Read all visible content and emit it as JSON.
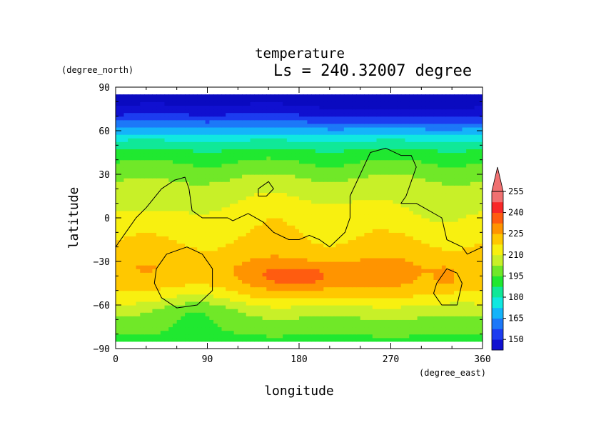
{
  "chart_data": {
    "type": "heatmap",
    "title": "temperature",
    "subtitle": "Ls = 240.32007 degree",
    "xlabel": "longitude",
    "ylabel": "latitude",
    "x_units": "(degree_east)",
    "y_units": "(degree_north)",
    "xlim": [
      0,
      360
    ],
    "ylim": [
      -90,
      90
    ],
    "data_lat_range": [
      -85,
      85
    ],
    "xticks": [
      0,
      90,
      180,
      270,
      360
    ],
    "yticks": [
      -90,
      -60,
      -30,
      0,
      30,
      60,
      90
    ],
    "xtick_labels": [
      "0",
      "90",
      "180",
      "270",
      "360"
    ],
    "ytick_labels": [
      "−90",
      "−60",
      "−30",
      "0",
      "30",
      "60",
      "90"
    ],
    "colorbar": {
      "levels": [
        150,
        165,
        180,
        195,
        210,
        225,
        240,
        255
      ],
      "labels": [
        "150",
        "165",
        "180",
        "195",
        "210",
        "225",
        "240",
        "255"
      ],
      "colors": [
        "#1010d0",
        "#1c3cf0",
        "#1c78f8",
        "#14b4fa",
        "#10e8e0",
        "#10e898",
        "#20e830",
        "#70e828",
        "#c8f028",
        "#f8f010",
        "#ffc800",
        "#ff9400",
        "#ff5c10",
        "#f82828",
        "#f07070"
      ],
      "extend": "max",
      "extend_color": "#f07070",
      "bottom_color": "#0a0ac0"
    },
    "zonal_profile": [
      {
        "lat": 85,
        "value": 146
      },
      {
        "lat": 75,
        "value": 152
      },
      {
        "lat": 65,
        "value": 168
      },
      {
        "lat": 55,
        "value": 185
      },
      {
        "lat": 45,
        "value": 198
      },
      {
        "lat": 35,
        "value": 205
      },
      {
        "lat": 25,
        "value": 212
      },
      {
        "lat": 15,
        "value": 216
      },
      {
        "lat": 5,
        "value": 220
      },
      {
        "lat": -5,
        "value": 222
      },
      {
        "lat": -15,
        "value": 225
      },
      {
        "lat": -25,
        "value": 228
      },
      {
        "lat": -35,
        "value": 231
      },
      {
        "lat": -45,
        "value": 228
      },
      {
        "lat": -55,
        "value": 222
      },
      {
        "lat": -65,
        "value": 212
      },
      {
        "lat": -75,
        "value": 206
      },
      {
        "lat": -85,
        "value": 200
      }
    ],
    "anomalies": [
      {
        "lon": 205,
        "lat": -42,
        "rlon": 82,
        "rlat": 14,
        "amp": 10
      },
      {
        "lon": 175,
        "lat": -40,
        "rlon": 30,
        "rlat": 6,
        "amp": 7
      },
      {
        "lon": 325,
        "lat": -42,
        "rlon": 14,
        "rlat": 10,
        "amp": 6
      },
      {
        "lon": 75,
        "lat": -63,
        "rlon": 45,
        "rlat": 14,
        "amp": -9
      },
      {
        "lon": 30,
        "lat": 12,
        "rlon": 40,
        "rlat": 18,
        "amp": -5
      },
      {
        "lon": 290,
        "lat": 5,
        "rlon": 40,
        "rlat": 15,
        "amp": -4
      },
      {
        "lon": 205,
        "lat": 0,
        "rlon": 60,
        "rlat": 14,
        "amp": 3
      },
      {
        "lon": 280,
        "lat": 70,
        "rlon": 70,
        "rlat": 10,
        "amp": -4
      }
    ],
    "contours": [
      [
        [
          0,
          -20
        ],
        [
          10,
          -10
        ],
        [
          20,
          0
        ],
        [
          30,
          7
        ],
        [
          45,
          20
        ],
        [
          58,
          26
        ],
        [
          68,
          28
        ],
        [
          72,
          20
        ],
        [
          75,
          5
        ],
        [
          85,
          0
        ],
        [
          110,
          0
        ],
        [
          115,
          -2
        ],
        [
          130,
          3
        ],
        [
          145,
          -3
        ],
        [
          155,
          -10
        ],
        [
          170,
          -15
        ],
        [
          180,
          -15
        ],
        [
          190,
          -12
        ],
        [
          200,
          -15
        ],
        [
          210,
          -20
        ],
        [
          225,
          -10
        ],
        [
          230,
          0
        ],
        [
          230,
          15
        ],
        [
          240,
          30
        ],
        [
          250,
          45
        ],
        [
          265,
          48
        ],
        [
          280,
          43
        ],
        [
          290,
          43
        ],
        [
          295,
          35
        ],
        [
          290,
          25
        ],
        [
          285,
          15
        ],
        [
          280,
          10
        ],
        [
          295,
          10
        ],
        [
          320,
          0
        ],
        [
          325,
          -15
        ],
        [
          340,
          -20
        ],
        [
          345,
          -25
        ],
        [
          360,
          -20
        ]
      ],
      [
        [
          140,
          20
        ],
        [
          150,
          25
        ],
        [
          155,
          20
        ],
        [
          148,
          15
        ],
        [
          140,
          15
        ],
        [
          140,
          20
        ]
      ],
      [
        [
          40,
          -35
        ],
        [
          50,
          -25
        ],
        [
          70,
          -20
        ],
        [
          85,
          -25
        ],
        [
          95,
          -35
        ],
        [
          95,
          -50
        ],
        [
          80,
          -60
        ],
        [
          60,
          -62
        ],
        [
          45,
          -55
        ],
        [
          38,
          -45
        ],
        [
          40,
          -35
        ]
      ],
      [
        [
          315,
          -45
        ],
        [
          325,
          -35
        ],
        [
          335,
          -38
        ],
        [
          340,
          -45
        ],
        [
          335,
          -60
        ],
        [
          320,
          -60
        ],
        [
          312,
          -52
        ],
        [
          315,
          -45
        ]
      ]
    ]
  }
}
